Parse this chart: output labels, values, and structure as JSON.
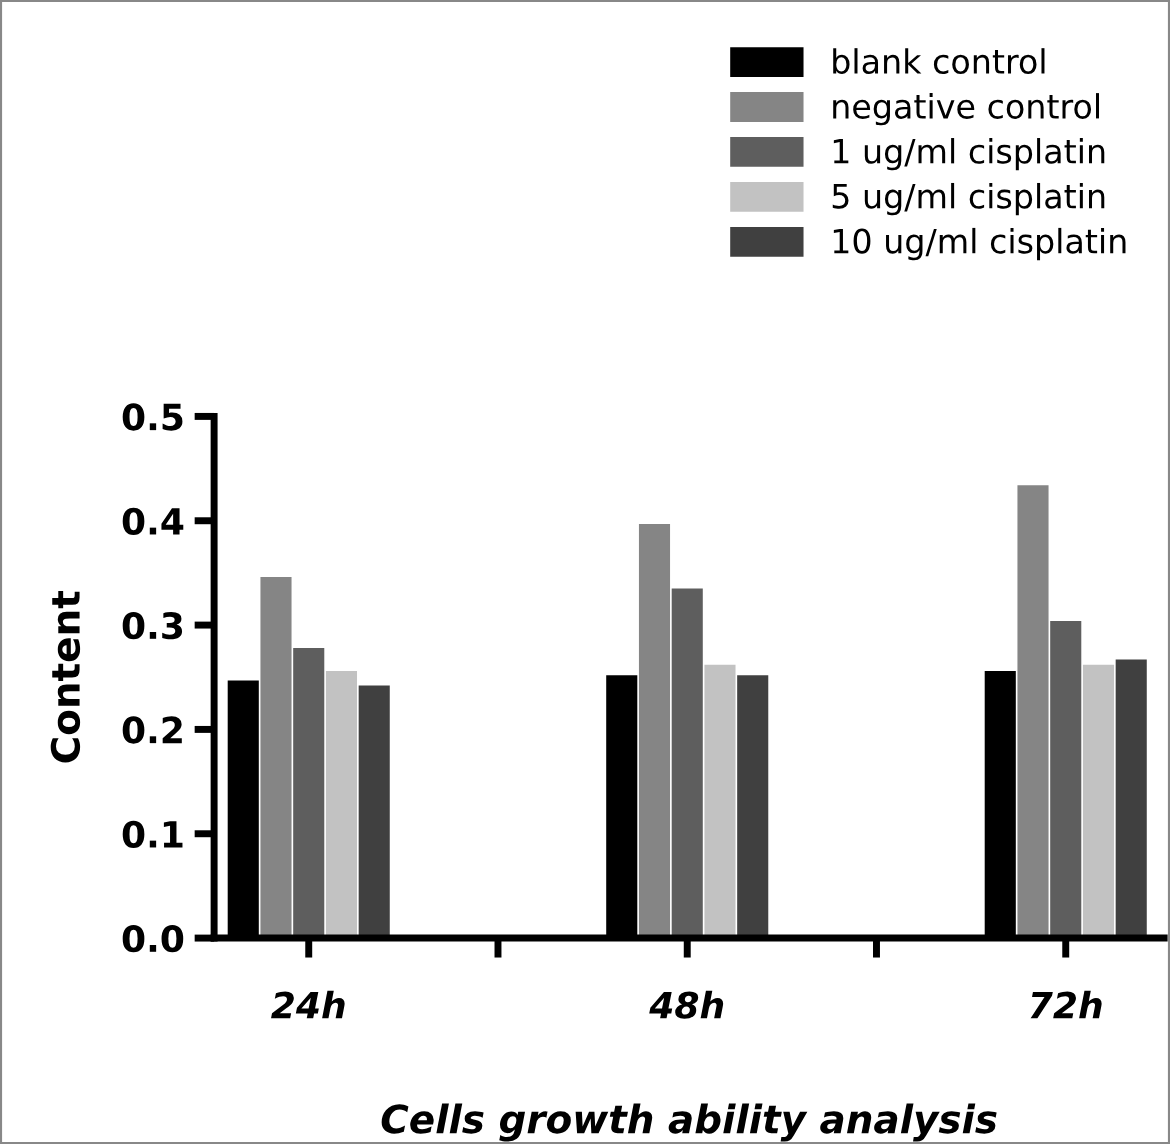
{
  "chart_data": {
    "type": "bar",
    "xlabel": "Cells growth ability analysis",
    "ylabel": "Content",
    "categories": [
      "24h",
      "48h",
      "72h"
    ],
    "series": [
      {
        "name": "blank control",
        "color": "#000000",
        "values": [
          0.247,
          0.252,
          0.256
        ]
      },
      {
        "name": "negative control",
        "color": "#858585",
        "values": [
          0.346,
          0.397,
          0.434
        ]
      },
      {
        "name": "1 ug/ml cisplatin",
        "color": "#5e5e5e",
        "values": [
          0.278,
          0.335,
          0.304
        ]
      },
      {
        "name": "5 ug/ml cisplatin",
        "color": "#c2c2c2",
        "values": [
          0.256,
          0.262,
          0.262
        ]
      },
      {
        "name": "10 ug/ml cisplatin",
        "color": "#404040",
        "values": [
          0.242,
          0.252,
          0.267
        ]
      }
    ],
    "ylim": [
      0,
      0.5
    ],
    "yticks": [
      {
        "value": 0,
        "label": "0.0"
      },
      0.1,
      0.2,
      0.3,
      0.4,
      0.5
    ],
    "grid": false,
    "legend": "top right"
  }
}
